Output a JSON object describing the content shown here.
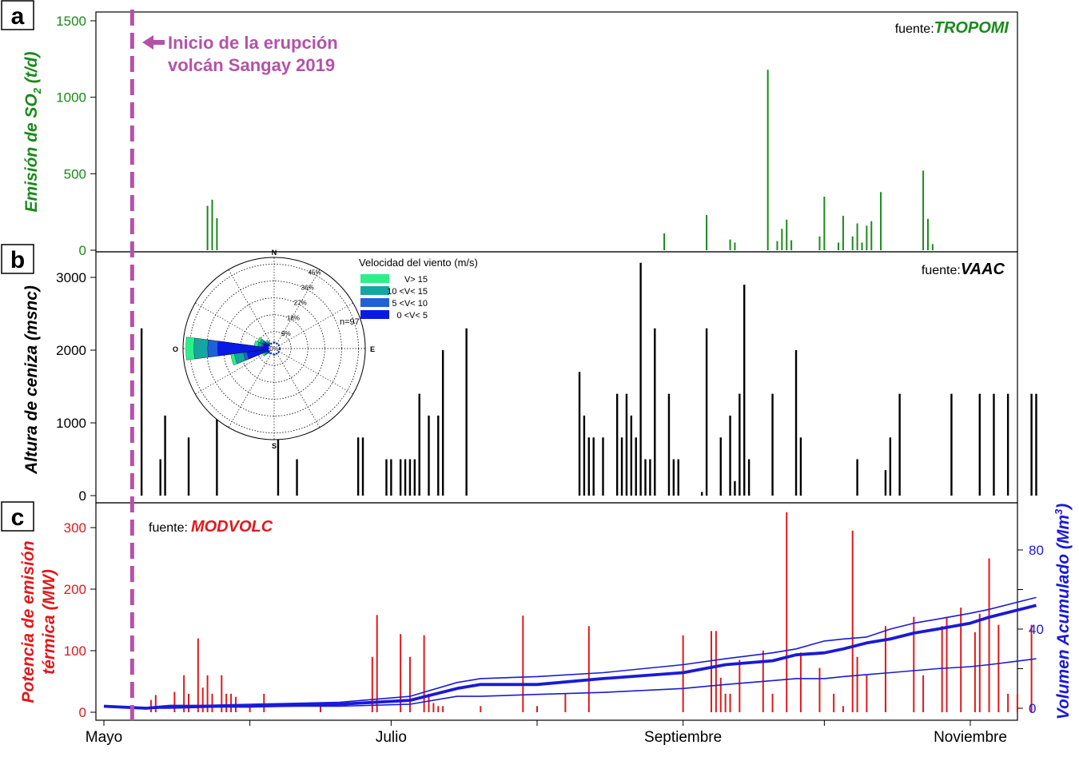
{
  "chart_data": [
    {
      "panel": "a",
      "type": "bar",
      "ylabel": "Emisión de SO",
      "ylabel_sub": "2",
      "ylabel_tail": " (t/d)",
      "source_prefix": "fuente:",
      "source": "TROPOMI",
      "color": "#1a8a1a",
      "ylim": [
        0,
        1550
      ],
      "yticks": [
        "0",
        "500",
        "1000",
        "1500"
      ],
      "x_dates": [
        "May 23",
        "May 24",
        "May 25",
        "Aug 28",
        "Sep 6",
        "Sep 11",
        "Sep 12",
        "Sep 19",
        "Sep 21",
        "Sep 22",
        "Sep 23",
        "Sep 24",
        "Sep 30",
        "Oct 1",
        "Oct 4",
        "Oct 5",
        "Oct 7",
        "Oct 8",
        "Oct 9",
        "Oct 10",
        "Oct 11",
        "Oct 13",
        "Oct 22",
        "Oct 23",
        "Oct 24"
      ],
      "values": [
        290,
        330,
        210,
        110,
        230,
        70,
        50,
        1180,
        60,
        140,
        200,
        65,
        90,
        350,
        50,
        225,
        90,
        175,
        50,
        160,
        190,
        380,
        520,
        205,
        40
      ]
    },
    {
      "panel": "b",
      "type": "bar",
      "ylabel": "Altura de ceniza (msnc)",
      "source_prefix": "fuente:",
      "source": "VAAC",
      "color": "#000000",
      "ylim": [
        0,
        3300
      ],
      "yticks": [
        "0",
        "1000",
        "2000",
        "3000"
      ],
      "x_dates": [
        "May 9",
        "May 13",
        "May 14",
        "May 19",
        "May 25",
        "Jun 7",
        "Jun 11",
        "Jun 24",
        "Jun 25",
        "Jun 30",
        "Jul 1",
        "Jul 3",
        "Jul 4",
        "Jul 5",
        "Jul 6",
        "Jul 7",
        "Jul 9",
        "Jul 11",
        "Jul 12",
        "Jul 17",
        "Aug 10",
        "Aug 11",
        "Aug 12",
        "Aug 13",
        "Aug 15",
        "Aug 18",
        "Aug 19",
        "Aug 20",
        "Aug 21",
        "Aug 22",
        "Aug 23",
        "Aug 24",
        "Aug 25",
        "Aug 26",
        "Aug 29",
        "Aug 30",
        "Aug 31",
        "Sep 5",
        "Sep 6",
        "Sep 9",
        "Sep 11",
        "Sep 12",
        "Sep 13",
        "Sep 14",
        "Sep 15",
        "Sep 20",
        "Sep 25",
        "Sep 26",
        "Oct 8",
        "Oct 14",
        "Oct 15",
        "Oct 17",
        "Oct 28",
        "Nov 3",
        "Nov 6",
        "Nov 9",
        "Nov 14",
        "Nov 15"
      ],
      "values": [
        2300,
        500,
        1100,
        800,
        1100,
        800,
        500,
        800,
        800,
        500,
        500,
        500,
        500,
        500,
        500,
        1400,
        1100,
        1100,
        2000,
        2300,
        1700,
        1100,
        800,
        800,
        800,
        1400,
        800,
        1400,
        1100,
        800,
        3200,
        500,
        500,
        2300,
        1400,
        500,
        500,
        50,
        2300,
        800,
        1100,
        200,
        1400,
        2900,
        500,
        1400,
        2000,
        800,
        500,
        350,
        800,
        1400,
        1400,
        1400,
        1400,
        1400,
        1400,
        1400
      ]
    },
    {
      "panel": "c",
      "type": "bar+line",
      "ylabel": "Potencia de emisión térmica (MW)",
      "ylabel_line1": "Potencia de emisión",
      "ylabel_line2": "térmica (MW)",
      "y2label": "Volumen Acumulado (Mm",
      "y2label_sup": "3",
      "y2label_tail": ")",
      "source_prefix": "fuente:",
      "source": "MODVOLC",
      "bar_color": "#e0191c",
      "line_color": "#1a1ad8",
      "ylim": [
        0,
        330
      ],
      "yticks": [
        "0",
        "100",
        "200",
        "300"
      ],
      "y2lim": [
        -2,
        102
      ],
      "y2ticks": [
        "0",
        "40",
        "80"
      ],
      "x_dates": [
        "May 11",
        "May 12",
        "May 16",
        "May 18",
        "May 19",
        "May 21",
        "May 22",
        "May 23",
        "May 24",
        "May 26",
        "May 27",
        "May 28",
        "May 29",
        "Jun 1",
        "Jun 4",
        "Jun 16",
        "Jun 27",
        "Jun 28",
        "Jul 3",
        "Jul 5",
        "Jul 8",
        "Jul 9",
        "Jul 10",
        "Jul 11",
        "Jul 12",
        "Jul 20",
        "Jul 29",
        "Aug 1",
        "Aug 7",
        "Aug 12",
        "Sep 1",
        "Sep 7",
        "Sep 8",
        "Sep 9",
        "Sep 10",
        "Sep 11",
        "Sep 13",
        "Sep 18",
        "Sep 20",
        "Sep 23",
        "Sep 26",
        "Sep 30",
        "Oct 3",
        "Oct 5",
        "Oct 7",
        "Oct 8",
        "Oct 10",
        "Oct 14",
        "Oct 20",
        "Oct 22",
        "Oct 26",
        "Oct 27",
        "Oct 30",
        "Nov 2",
        "Nov 3",
        "Nov 5",
        "Nov 7",
        "Nov 9",
        "Nov 11",
        "Nov 14"
      ],
      "values": [
        20,
        28,
        33,
        60,
        30,
        120,
        40,
        60,
        30,
        60,
        30,
        30,
        25,
        10,
        30,
        10,
        90,
        158,
        127,
        90,
        125,
        30,
        15,
        10,
        10,
        10,
        157,
        10,
        30,
        140,
        125,
        132,
        132,
        56,
        30,
        30,
        85,
        100,
        30,
        325,
        97,
        72,
        30,
        10,
        295,
        90,
        60,
        140,
        155,
        60,
        140,
        155,
        170,
        130,
        160,
        250,
        142,
        30,
        30,
        142
      ],
      "series": [
        {
          "x_dates": [
            "May 1",
            "May 10",
            "May 15",
            "Jun 1",
            "Jun 20",
            "Jul 5",
            "Jul 15",
            "Jul 20",
            "Aug 1",
            "Aug 15",
            "Sep 1",
            "Sep 10",
            "Sep 20",
            "Sep 25",
            "Oct 1",
            "Oct 5",
            "Oct 10",
            "Oct 15",
            "Oct 20",
            "Oct 25",
            "Nov 1",
            "Nov 5",
            "Nov 15"
          ],
          "values": [
            1,
            0,
            1,
            2,
            3,
            6,
            13,
            15,
            16,
            18,
            22,
            25,
            28,
            30,
            34,
            35,
            36,
            40,
            43,
            45,
            48,
            50,
            56
          ]
        },
        {
          "x_dates": [
            "May 1",
            "May 10",
            "May 15",
            "Jun 1",
            "Jun 20",
            "Jul 5",
            "Jul 15",
            "Jul 20",
            "Aug 1",
            "Aug 15",
            "Sep 1",
            "Sep 10",
            "Sep 20",
            "Sep 25",
            "Oct 1",
            "Oct 5",
            "Oct 10",
            "Oct 15",
            "Oct 20",
            "Oct 25",
            "Nov 1",
            "Nov 5",
            "Nov 15"
          ],
          "values": [
            1,
            0,
            1,
            1,
            2,
            4,
            10,
            12,
            12,
            15,
            18,
            22,
            24,
            27,
            28,
            30,
            33,
            35,
            38,
            40,
            43,
            46,
            52
          ]
        },
        {
          "x_dates": [
            "May 1",
            "May 10",
            "May 15",
            "Jun 1",
            "Jun 20",
            "Jul 5",
            "Jul 15",
            "Jul 20",
            "Aug 1",
            "Aug 15",
            "Sep 1",
            "Sep 10",
            "Sep 20",
            "Sep 25",
            "Oct 1",
            "Oct 5",
            "Oct 10",
            "Oct 15",
            "Oct 20",
            "Oct 25",
            "Nov 1",
            "Nov 5",
            "Nov 15"
          ],
          "values": [
            1,
            0,
            0,
            1,
            1,
            2,
            6,
            6,
            7,
            8,
            10,
            12,
            14,
            15,
            15,
            16,
            17,
            18,
            19,
            20,
            21,
            22,
            25
          ]
        }
      ]
    }
  ],
  "panel_letters": [
    "a",
    "b",
    "c"
  ],
  "x_axis": {
    "tick_labels": [
      "Mayo",
      "Julio",
      "Septiembre",
      "Noviembre"
    ],
    "tick_dates": [
      "May 1",
      "Jul 1",
      "Sep 1",
      "Nov 1"
    ]
  },
  "eruption": {
    "date": "May 7",
    "line1": "Inicio de la erupción",
    "line2": "volcán Sangay 2019",
    "color": "#b452a8"
  },
  "wind_rose": {
    "title": "Velocidad del viento (m/s)",
    "cardinals": [
      "N",
      "E",
      "S",
      "O"
    ],
    "ring_labels": [
      "0%",
      "9%",
      "18%",
      "27%",
      "36%",
      "45%"
    ],
    "n_label": "n=97",
    "legend": [
      {
        "label": "V> 15",
        "color": "#2bf08a"
      },
      {
        "label": "10 <V< 15",
        "color": "#15a6a0"
      },
      {
        "label": "5 <V< 10",
        "color": "#1f62d6"
      },
      {
        "label": "0 <V< 5",
        "color": "#0a1ae6"
      }
    ]
  }
}
